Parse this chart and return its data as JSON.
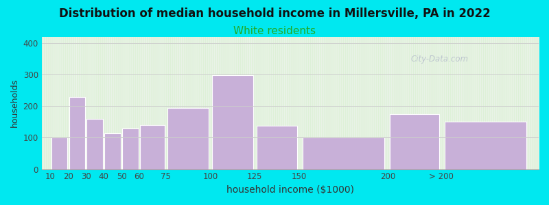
{
  "title": "Distribution of median household income in Millersville, PA in 2022",
  "subtitle": "White residents",
  "xlabel": "household income ($1000)",
  "ylabel": "households",
  "title_fontsize": 12,
  "subtitle_fontsize": 11,
  "subtitle_color": "#22aa22",
  "bar_color": "#c8b0d8",
  "bar_edgecolor": "#ffffff",
  "background_color": "#00e8f0",
  "plot_bg_top_left": "#d8f0d0",
  "plot_bg_right": "#f0f4f0",
  "ylim": [
    0,
    420
  ],
  "yticks": [
    0,
    100,
    200,
    300,
    400
  ],
  "watermark": "City-Data.com",
  "categories": [
    "10",
    "20",
    "30",
    "40",
    "50",
    "60",
    "75",
    "100",
    "125",
    "150",
    "200",
    "> 200"
  ],
  "values": [
    100,
    230,
    160,
    115,
    130,
    140,
    195,
    298,
    138,
    102,
    174,
    150
  ],
  "x_lefts": [
    10,
    20,
    30,
    40,
    50,
    60,
    75,
    100,
    125,
    150,
    200,
    230
  ],
  "x_widths": [
    10,
    10,
    10,
    10,
    10,
    15,
    25,
    25,
    25,
    50,
    30,
    50
  ],
  "tick_positions": [
    10,
    20,
    30,
    40,
    50,
    60,
    75,
    100,
    125,
    150,
    200,
    230
  ],
  "x_min": 5,
  "x_max": 285
}
